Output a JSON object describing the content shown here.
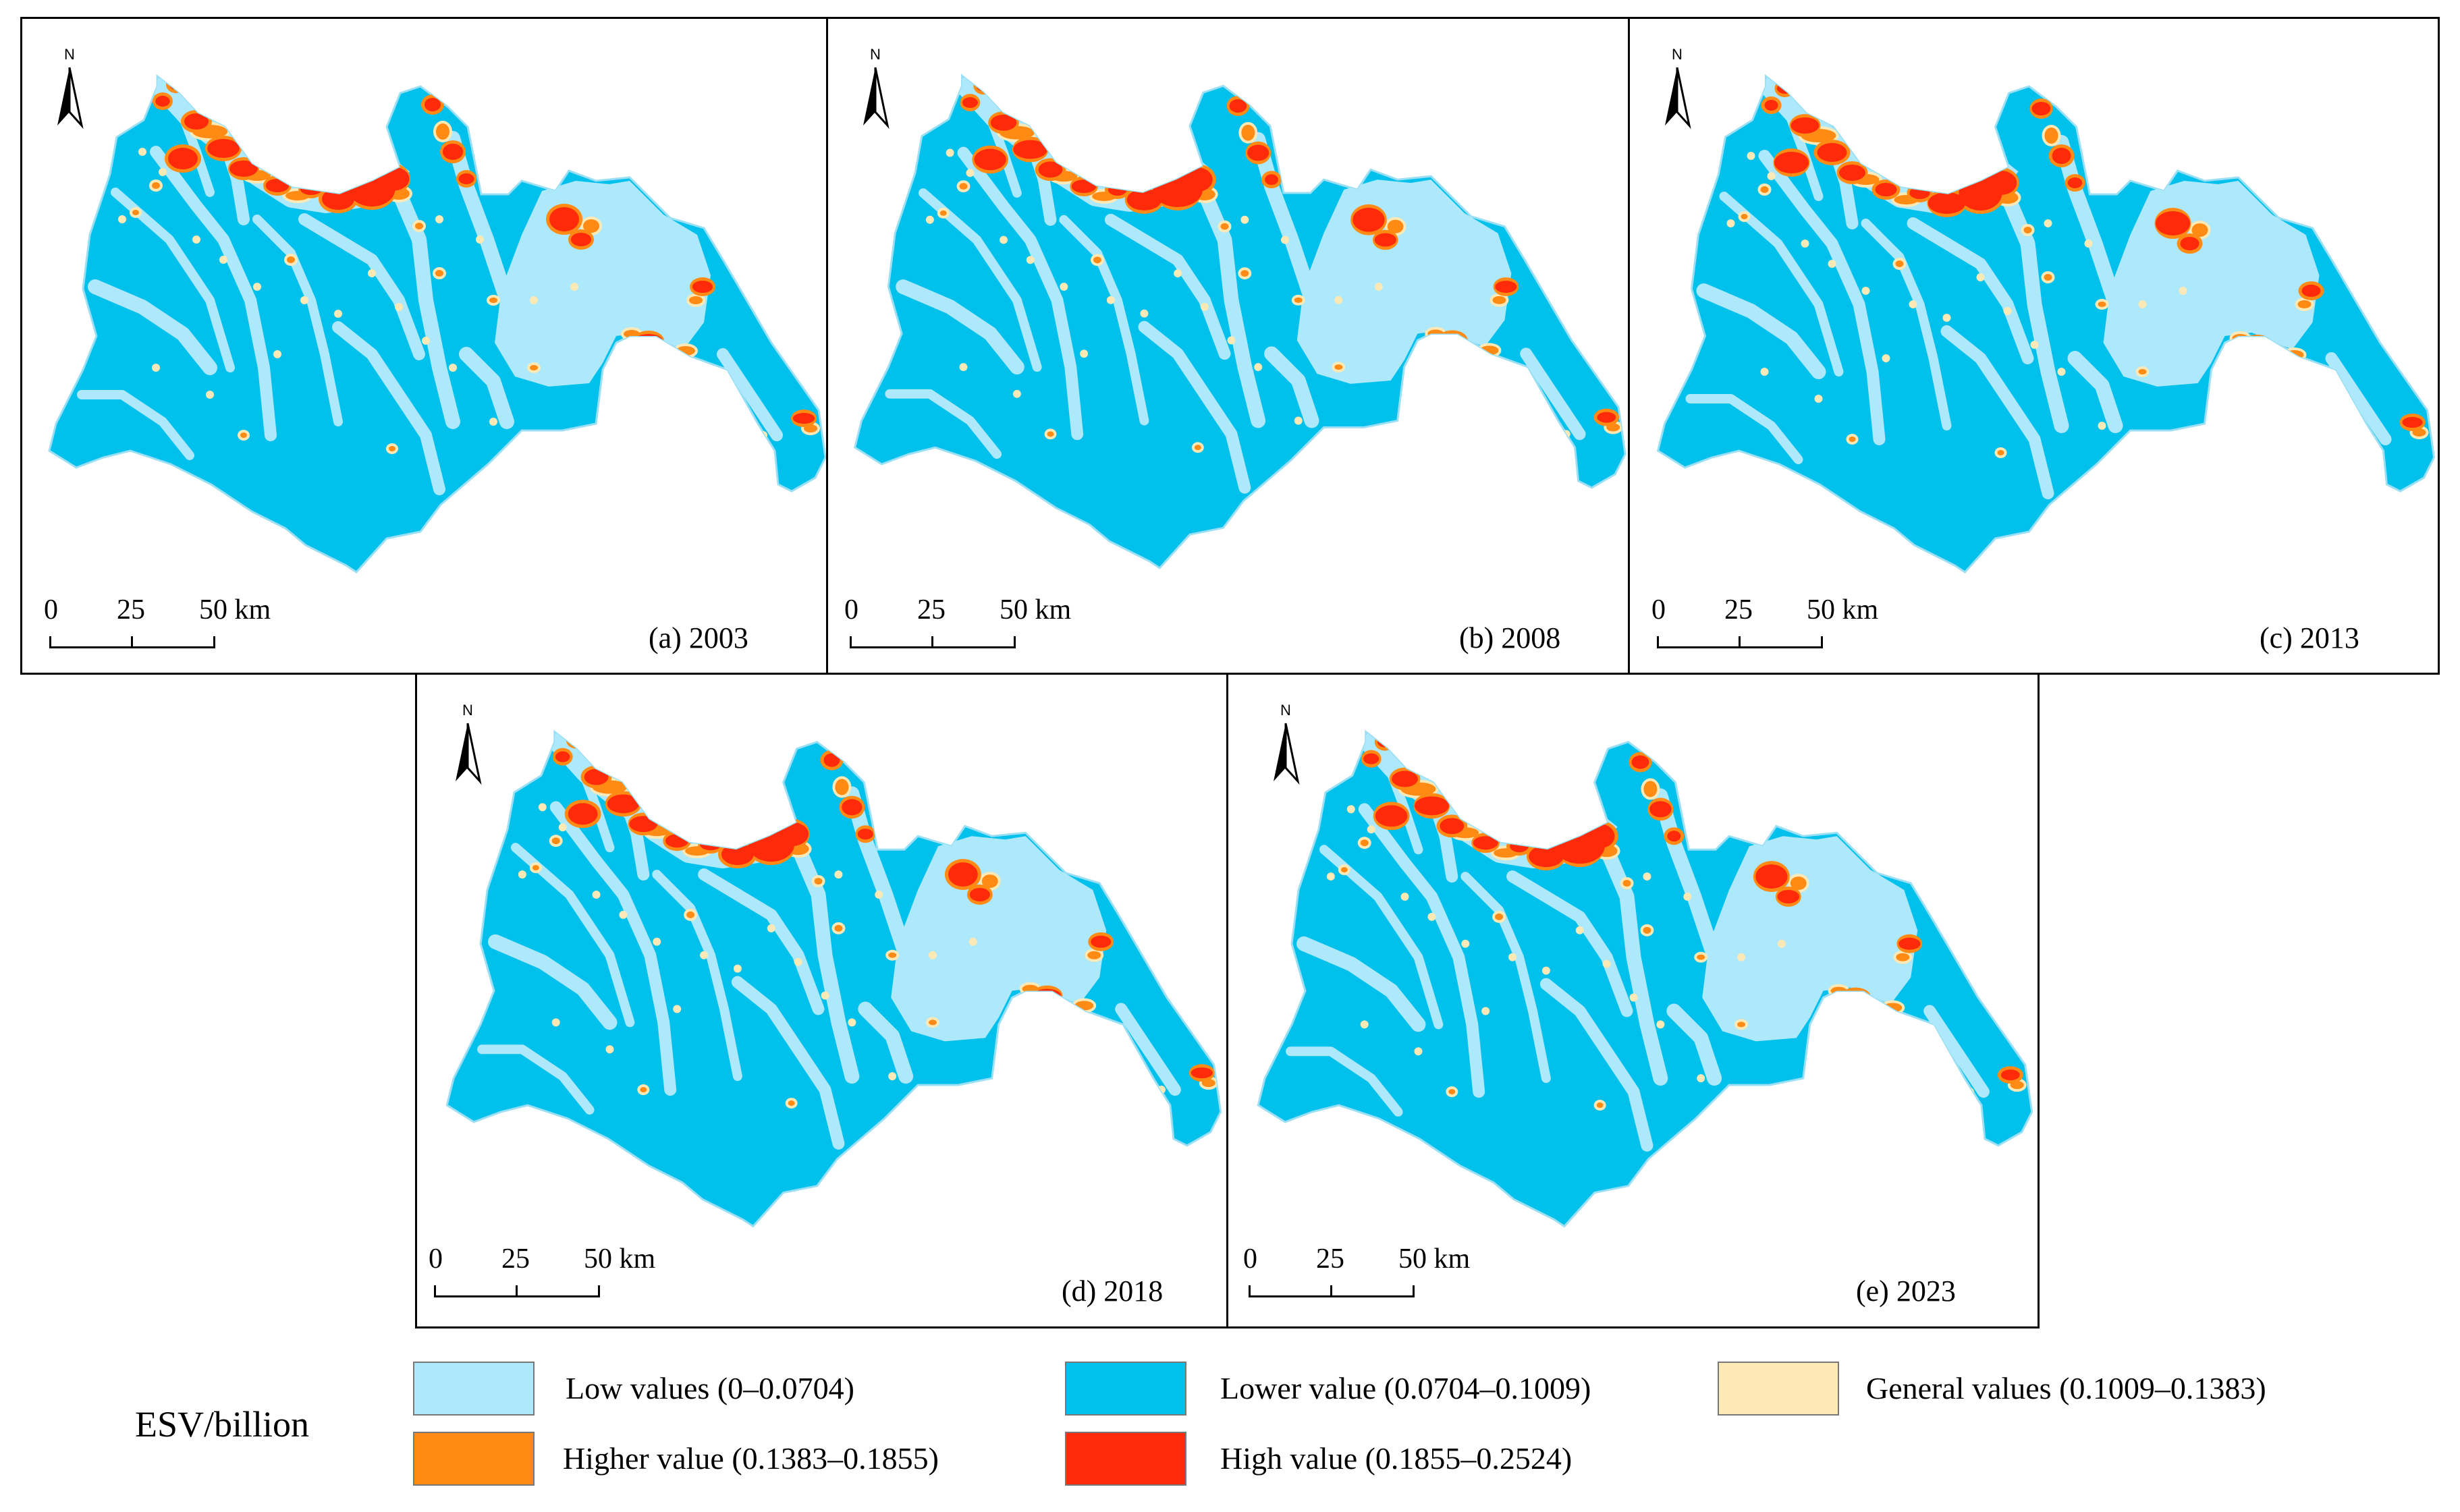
{
  "panels": [
    {
      "id": "a",
      "label": "(a)  2003"
    },
    {
      "id": "b",
      "label": "(b)  2008"
    },
    {
      "id": "c",
      "label": "(c)  2013"
    },
    {
      "id": "d",
      "label": "(d)  2018"
    },
    {
      "id": "e",
      "label": "(e)  2023"
    }
  ],
  "north_label": "N",
  "scale": {
    "t0": "0",
    "t1": "25",
    "t2": "50 km"
  },
  "legend": {
    "title": "ESV/billion",
    "classes": [
      {
        "label": "Low values (0–0.0704)",
        "color": "#aee8fb"
      },
      {
        "label": "Lower value (0.0704–0.1009)",
        "color": "#00c0ec"
      },
      {
        "label": "General values (0.1009–0.1383)",
        "color": "#fde9b5"
      },
      {
        "label": "Higher value (0.1383–0.1855)",
        "color": "#ff8a14"
      },
      {
        "label": "High value (0.1855–0.2524)",
        "color": "#ff2a0a"
      }
    ]
  }
}
